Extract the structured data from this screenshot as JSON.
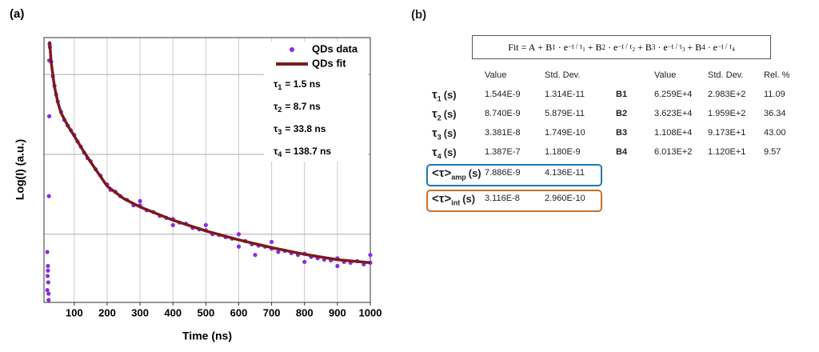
{
  "panel_labels": [
    "(a)",
    "(b)"
  ],
  "chart_data": {
    "type": "scatter",
    "x_label": "Time (ns)",
    "y_label": "Log(I) (a.u.)",
    "xlim": [
      8,
      1000
    ],
    "ylim": [
      14,
      29000
    ],
    "log_y": true,
    "grid": true,
    "xticks": [
      100,
      200,
      300,
      400,
      500,
      600,
      700,
      800,
      900,
      1000
    ],
    "ygrid": [
      100,
      1000,
      10000
    ],
    "legend": "upper right",
    "series": [
      {
        "name": "QDs data",
        "color": "#8a2be2",
        "type": "scatter",
        "x": [
          18,
          19,
          20,
          21,
          22,
          18,
          20,
          22,
          23,
          24,
          24,
          25,
          26,
          30,
          35,
          40,
          45,
          50,
          60,
          70,
          80,
          90,
          100,
          110,
          120,
          130,
          140,
          150,
          165,
          180,
          200,
          210,
          225,
          240,
          260,
          280,
          300,
          320,
          340,
          360,
          380,
          400,
          420,
          440,
          460,
          480,
          500,
          520,
          540,
          560,
          580,
          600,
          620,
          640,
          660,
          680,
          700,
          720,
          740,
          760,
          780,
          800,
          820,
          840,
          860,
          880,
          900,
          920,
          940,
          960,
          980,
          1000,
          300,
          400,
          500,
          600,
          700,
          800,
          900,
          1000,
          650
        ],
        "values": [
          20,
          30,
          40,
          25,
          18,
          60,
          35,
          15,
          300,
          3000,
          15000,
          24000,
          22000,
          14500,
          9500,
          7200,
          5600,
          4600,
          3400,
          2700,
          2300,
          2000,
          1750,
          1450,
          1250,
          1050,
          900,
          820,
          650,
          540,
          420,
          360,
          340,
          300,
          270,
          230,
          230,
          200,
          190,
          170,
          160,
          155,
          140,
          135,
          120,
          115,
          112,
          100,
          98,
          92,
          88,
          70,
          82,
          75,
          72,
          70,
          66,
          60,
          62,
          58,
          55,
          57,
          52,
          50,
          48,
          47,
          50,
          45,
          44,
          46,
          42,
          44,
          260,
          130,
          130,
          100,
          80,
          45,
          40,
          55,
          55
        ]
      },
      {
        "name": "QDs fit",
        "color": "#7b1a1a",
        "type": "line",
        "x": [
          25,
          30,
          40,
          50,
          60,
          80,
          100,
          125,
          150,
          200,
          250,
          300,
          400,
          500,
          600,
          700,
          800,
          900,
          1000
        ],
        "values": [
          26000,
          14000,
          7000,
          4500,
          3300,
          2300,
          1700,
          1150,
          800,
          400,
          280,
          220,
          150,
          110,
          85,
          68,
          56,
          48,
          44
        ]
      }
    ],
    "annotations": [
      {
        "symbol": "τ",
        "sub": "1",
        "text": "= 1.5 ns"
      },
      {
        "symbol": "τ",
        "sub": "2",
        "text": "= 8.7 ns"
      },
      {
        "symbol": "τ",
        "sub": "3",
        "text": "= 33.8 ns"
      },
      {
        "symbol": "τ",
        "sub": "4",
        "text": "= 138.7 ns"
      }
    ]
  },
  "table": {
    "equation": {
      "prefix": "Fit = A",
      "terms": [
        {
          "coef": "B",
          "sub": "1",
          "exp": "−t / τ",
          "expsub": "1"
        },
        {
          "coef": "B",
          "sub": "2",
          "exp": "−t / τ",
          "expsub": "2"
        },
        {
          "coef": "B",
          "sub": "3",
          "exp": "−t / τ",
          "expsub": "3"
        },
        {
          "coef": "B",
          "sub": "4",
          "exp": "−t / τ",
          "expsub": "4"
        }
      ]
    },
    "headers": [
      "Value",
      "Std. Dev.",
      "Value",
      "Std. Dev.",
      "Rel. %"
    ],
    "rows": [
      {
        "sym": "τ",
        "sub": "1",
        "unit": "(s)",
        "cells": [
          "1.544E-9",
          "1.314E-11",
          "B1",
          "6.259E+4",
          "2.983E+2",
          "11.09"
        ]
      },
      {
        "sym": "τ",
        "sub": "2",
        "unit": "(s)",
        "cells": [
          "8.740E-9",
          "5.879E-11",
          "B2",
          "3.623E+4",
          "1.959E+2",
          "36.34"
        ]
      },
      {
        "sym": "τ",
        "sub": "3",
        "unit": "(s)",
        "cells": [
          "3.381E-8",
          "1.749E-10",
          "B3",
          "1.108E+4",
          "9.173E+1",
          "43.00"
        ]
      },
      {
        "sym": "τ",
        "sub": "4",
        "unit": "(s)",
        "cells": [
          "1.387E-7",
          "1.180E-9",
          "B4",
          "6.013E+2",
          "1.120E+1",
          "9.57"
        ]
      }
    ],
    "summary": [
      {
        "sym": "<τ>",
        "sub": "amp",
        "unit": "(s)",
        "cells": [
          "7.886E-9",
          "4.136E-11"
        ],
        "color": "#1f77b4"
      },
      {
        "sym": "<τ>",
        "sub": "int",
        "unit": "(s)",
        "cells": [
          "3.116E-8",
          "2.960E-10"
        ],
        "color": "#c8702a"
      }
    ]
  }
}
